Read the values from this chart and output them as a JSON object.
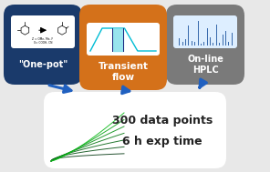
{
  "bg_color": "#e8e8e8",
  "box1_color": "#1a3a6b",
  "box2_color": "#d4711a",
  "box3_color": "#7a7a7a",
  "box4_color": "#ffffff",
  "arrow_color": "#2060c0",
  "label1": "\"One-pot\"",
  "label2": "Transient\nflow",
  "label3": "On-line\nHPLC",
  "label4_line1": "300 data points",
  "label4_line2": "6 h exp time",
  "label_color": "#ffffff",
  "label4_color": "#222222",
  "chart2_line_color": "#00bcd4",
  "chart2_shade_color": "#80deea",
  "chart3_bar_color": "#3366aa",
  "chart3_bg_color": "#ddeeff"
}
